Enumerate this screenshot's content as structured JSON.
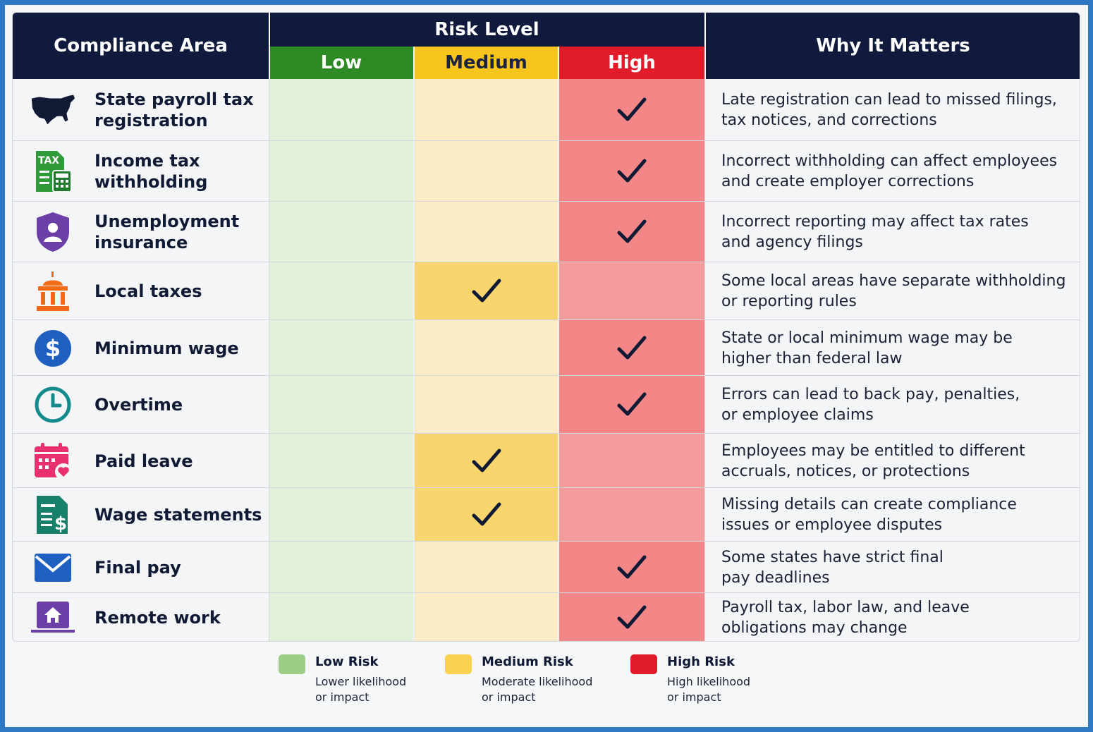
{
  "header": {
    "compliance_area": "Compliance Area",
    "risk_level": "Risk Level",
    "why_it_matters": "Why It Matters",
    "levels": {
      "low": "Low",
      "medium": "Medium",
      "high": "High"
    }
  },
  "colors": {
    "header_navy": "#0f1a3c",
    "low": "#2e8a24",
    "medium": "#f7c51e",
    "high": "#e21b2a"
  },
  "rows": [
    {
      "area_line1": "State payroll tax",
      "area_line2": "registration",
      "icon": "us-map-icon",
      "risk": "high",
      "why_line1": "Late registration can lead to missed filings,",
      "why_line2": "tax notices, and corrections"
    },
    {
      "area_line1": "Income tax",
      "area_line2": "withholding",
      "icon": "tax-document-icon",
      "icon_text": "TAX",
      "risk": "high",
      "why_line1": "Incorrect withholding can affect employees",
      "why_line2": "and create employer corrections"
    },
    {
      "area_line1": "Unemployment",
      "area_line2": "insurance",
      "icon": "shield-person-icon",
      "risk": "high",
      "why_line1": "Incorrect reporting may affect tax rates",
      "why_line2": "and agency filings"
    },
    {
      "area_line1": "Local taxes",
      "area_line2": "",
      "icon": "government-building-icon",
      "risk": "medium",
      "why_line1": "Some local areas have separate withholding",
      "why_line2": "or reporting rules"
    },
    {
      "area_line1": "Minimum wage",
      "area_line2": "",
      "icon": "dollar-coin-icon",
      "risk": "high",
      "why_line1": "State or local minimum wage may be",
      "why_line2": "higher than federal law"
    },
    {
      "area_line1": "Overtime",
      "area_line2": "",
      "icon": "clock-icon",
      "risk": "high",
      "why_line1": "Errors can lead to back pay, penalties,",
      "why_line2": "or employee claims"
    },
    {
      "area_line1": "Paid leave",
      "area_line2": "",
      "icon": "calendar-heart-icon",
      "risk": "medium",
      "why_line1": "Employees may be entitled to different",
      "why_line2": "accruals, notices, or protections"
    },
    {
      "area_line1": "Wage statements",
      "area_line2": "",
      "icon": "pay-statement-icon",
      "risk": "medium",
      "why_line1": "Missing details can create compliance",
      "why_line2": "issues or employee disputes"
    },
    {
      "area_line1": "Final pay",
      "area_line2": "",
      "icon": "envelope-icon",
      "risk": "high",
      "why_line1": "Some states have strict final",
      "why_line2": "pay deadlines"
    },
    {
      "area_line1": "Remote work",
      "area_line2": "",
      "icon": "laptop-home-icon",
      "risk": "high",
      "why_line1": "Payroll tax, labor law, and leave",
      "why_line2": "obligations may change"
    }
  ],
  "legend": [
    {
      "title": "Low Risk",
      "line1": "Lower likelihood",
      "line2": "or impact",
      "color": "#9ccf86"
    },
    {
      "title": "Medium Risk",
      "line1": "Moderate likelihood",
      "line2": "or impact",
      "color": "#f8d14e"
    },
    {
      "title": "High Risk",
      "line1": "High likelihood",
      "line2": "or impact",
      "color": "#e21b2a"
    }
  ]
}
